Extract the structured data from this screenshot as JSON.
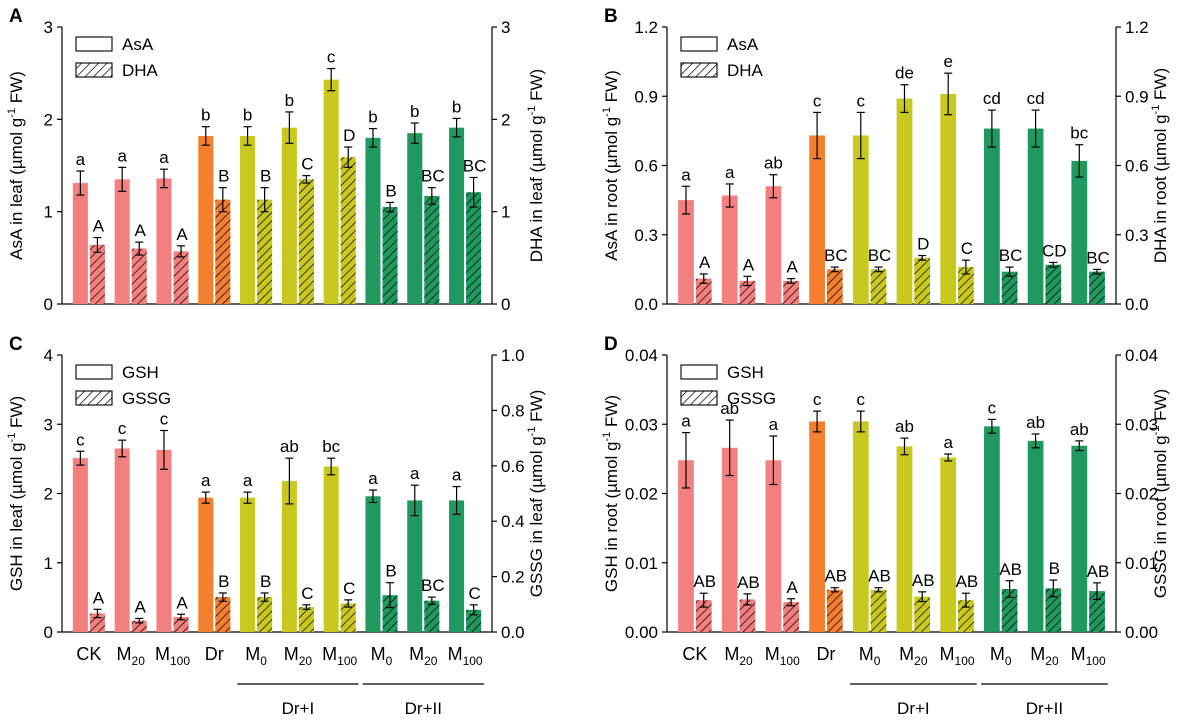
{
  "colors": {
    "CK": "#F47F7F",
    "Dr": "#F47F2F",
    "DrI": "#C8C81E",
    "DrII": "#1F9960",
    "axis": "#000000"
  },
  "groups": {
    "dr1": "Dr+I",
    "dr2": "Dr+II"
  },
  "chart_data": [
    {
      "panel": "A",
      "type": "bar",
      "legend": [
        "AsA",
        "DHA"
      ],
      "ylabel_left": "AsA in leaf (µmol g-1 FW)",
      "ylabel_right": "DHA in leaf (µmol g-1 FW)",
      "ylim_left": [
        0,
        3
      ],
      "ylim_right": [
        0,
        3
      ],
      "yticks_left": [
        "0",
        "1",
        "2",
        "3"
      ],
      "yticks_right": [
        "0",
        "1",
        "2",
        "3"
      ],
      "categories": [
        "CK",
        "M20",
        "M100",
        "Dr",
        "M0",
        "M20",
        "M100",
        "M0",
        "M20",
        "M100"
      ],
      "series": [
        {
          "name": "AsA",
          "values": [
            1.31,
            1.35,
            1.36,
            1.82,
            1.82,
            1.91,
            2.43,
            1.8,
            1.85,
            1.91
          ],
          "errors": [
            0.13,
            0.13,
            0.1,
            0.1,
            0.1,
            0.17,
            0.12,
            0.1,
            0.11,
            0.1
          ],
          "letters": [
            "a",
            "a",
            "a",
            "b",
            "b",
            "b",
            "c",
            "b",
            "b",
            "b"
          ]
        },
        {
          "name": "DHA",
          "values": [
            0.64,
            0.6,
            0.57,
            1.13,
            1.13,
            1.35,
            1.59,
            1.05,
            1.17,
            1.21
          ],
          "errors": [
            0.08,
            0.07,
            0.06,
            0.13,
            0.13,
            0.04,
            0.11,
            0.05,
            0.09,
            0.16
          ],
          "letters": [
            "A",
            "A",
            "A",
            "B",
            "B",
            "C",
            "D",
            "B",
            "BC",
            "BC"
          ]
        }
      ]
    },
    {
      "panel": "B",
      "type": "bar",
      "legend": [
        "AsA",
        "DHA"
      ],
      "ylabel_left": "AsA in root (µmol g-1 FW)",
      "ylabel_right": "DHA in root (µmol g-1 FW)",
      "ylim_left": [
        0,
        1.2
      ],
      "ylim_right": [
        0,
        1.2
      ],
      "yticks_left": [
        "0.0",
        "0.3",
        "0.6",
        "0.9",
        "1.2"
      ],
      "yticks_right": [
        "0.0",
        "0.3",
        "0.6",
        "0.9",
        "1.2"
      ],
      "categories": [
        "CK",
        "M20",
        "M100",
        "Dr",
        "M0",
        "M20",
        "M100",
        "M0",
        "M20",
        "M100"
      ],
      "series": [
        {
          "name": "AsA",
          "values": [
            0.45,
            0.47,
            0.51,
            0.73,
            0.73,
            0.89,
            0.91,
            0.76,
            0.76,
            0.62
          ],
          "errors": [
            0.06,
            0.05,
            0.05,
            0.1,
            0.1,
            0.06,
            0.09,
            0.08,
            0.08,
            0.07
          ],
          "letters": [
            "a",
            "a",
            "ab",
            "c",
            "c",
            "de",
            "e",
            "cd",
            "cd",
            "bc"
          ]
        },
        {
          "name": "DHA",
          "values": [
            0.11,
            0.1,
            0.1,
            0.15,
            0.15,
            0.2,
            0.16,
            0.14,
            0.17,
            0.14
          ],
          "errors": [
            0.02,
            0.02,
            0.01,
            0.01,
            0.01,
            0.01,
            0.03,
            0.02,
            0.01,
            0.01
          ],
          "letters": [
            "A",
            "A",
            "A",
            "BC",
            "BC",
            "D",
            "C",
            "BC",
            "CD",
            "BC"
          ]
        }
      ]
    },
    {
      "panel": "C",
      "type": "bar",
      "legend": [
        "GSH",
        "GSSG"
      ],
      "ylabel_left": "GSH in leaf (µmol g-1 FW)",
      "ylabel_right": "GSSG in leaf (µmol g-1 FW)",
      "ylim_left": [
        0,
        4
      ],
      "ylim_right": [
        0,
        1.0
      ],
      "yticks_left": [
        "0",
        "1",
        "2",
        "3",
        "4"
      ],
      "yticks_right": [
        "0.0",
        "0.2",
        "0.4",
        "0.6",
        "0.8",
        "1.0"
      ],
      "categories": [
        "CK",
        "M20",
        "M100",
        "Dr",
        "M0",
        "M20",
        "M100",
        "M0",
        "M20",
        "M100"
      ],
      "series": [
        {
          "name": "GSH",
          "values": [
            2.51,
            2.65,
            2.63,
            1.94,
            1.94,
            2.18,
            2.39,
            1.96,
            1.9,
            1.9
          ],
          "errors": [
            0.1,
            0.12,
            0.28,
            0.08,
            0.08,
            0.33,
            0.12,
            0.09,
            0.22,
            0.2
          ],
          "letters": [
            "c",
            "c",
            "c",
            "a",
            "a",
            "ab",
            "bc",
            "a",
            "a",
            "a"
          ]
        },
        {
          "name": "GSSG",
          "values": [
            0.067,
            0.041,
            0.054,
            0.126,
            0.126,
            0.09,
            0.103,
            0.133,
            0.113,
            0.08
          ],
          "errors": [
            0.015,
            0.008,
            0.01,
            0.015,
            0.015,
            0.008,
            0.013,
            0.045,
            0.013,
            0.018
          ],
          "letters": [
            "A",
            "A",
            "A",
            "B",
            "B",
            "C",
            "C",
            "B",
            "BC",
            "C"
          ]
        }
      ]
    },
    {
      "panel": "D",
      "type": "bar",
      "legend": [
        "GSH",
        "GSSG"
      ],
      "ylabel_left": "GSH in root (µmol g-1 FW)",
      "ylabel_right": "GSSG in root (µmol g-1 FW)",
      "ylim_left": [
        0,
        0.04
      ],
      "ylim_right": [
        0,
        0.04
      ],
      "yticks_left": [
        "0.00",
        "0.01",
        "0.02",
        "0.03",
        "0.04"
      ],
      "yticks_right": [
        "0.00",
        "0.01",
        "0.02",
        "0.03",
        "0.04"
      ],
      "categories": [
        "CK",
        "M20",
        "M100",
        "Dr",
        "M0",
        "M20",
        "M100",
        "M0",
        "M20",
        "M100"
      ],
      "series": [
        {
          "name": "GSH",
          "values": [
            0.0248,
            0.0266,
            0.0248,
            0.0304,
            0.0304,
            0.0268,
            0.0252,
            0.0297,
            0.0276,
            0.0269
          ],
          "errors": [
            0.004,
            0.004,
            0.0035,
            0.0015,
            0.0015,
            0.0012,
            0.0005,
            0.001,
            0.001,
            0.0007
          ],
          "letters": [
            "a",
            "ab",
            "a",
            "c",
            "c",
            "ab",
            "a",
            "c",
            "ab",
            "ab"
          ]
        },
        {
          "name": "GSSG",
          "values": [
            0.0046,
            0.0047,
            0.0043,
            0.0061,
            0.0061,
            0.0051,
            0.0046,
            0.0062,
            0.0063,
            0.0059
          ],
          "errors": [
            0.001,
            0.0008,
            0.0005,
            0.0003,
            0.0003,
            0.0007,
            0.001,
            0.0012,
            0.0012,
            0.0012
          ],
          "letters": [
            "AB",
            "AB",
            "A",
            "AB",
            "AB",
            "AB",
            "AB",
            "AB",
            "B",
            "AB"
          ]
        }
      ]
    }
  ]
}
